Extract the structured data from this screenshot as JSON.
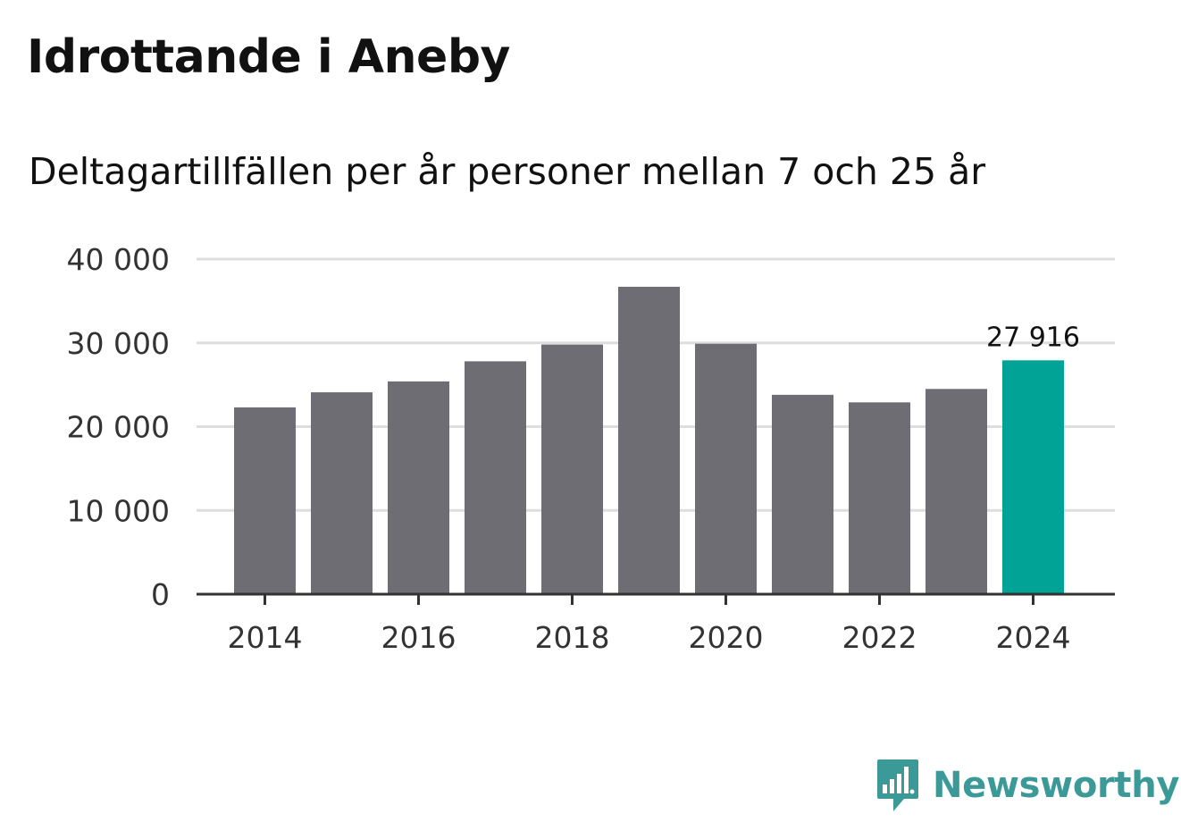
{
  "header": {
    "title": "Idrottande i Aneby",
    "subtitle": "Deltagartillfällen per år personer mellan 7 och 25 år"
  },
  "chart_data": {
    "type": "bar",
    "title": "Idrottande i Aneby",
    "subtitle": "Deltagartillfällen per år personer mellan 7 och 25 år",
    "xlabel": "",
    "ylabel": "",
    "categories": [
      "2014",
      "2015",
      "2016",
      "2017",
      "2018",
      "2019",
      "2020",
      "2021",
      "2022",
      "2023",
      "2024"
    ],
    "values": [
      22300,
      24100,
      25400,
      27800,
      29800,
      36700,
      29900,
      23800,
      22900,
      24500,
      27916
    ],
    "highlight_index": 10,
    "data_label": "27 916",
    "ylim": [
      0,
      40000
    ],
    "yticks": [
      0,
      10000,
      20000,
      30000,
      40000
    ],
    "ytick_labels": [
      "0",
      "10 000",
      "20 000",
      "30 000",
      "40 000"
    ],
    "xtick_labels": [
      "2014",
      "2016",
      "2018",
      "2020",
      "2022",
      "2024"
    ],
    "grid": true,
    "colors": {
      "bar": "#6e6d73",
      "highlight": "#00a396",
      "grid": "#dddddd",
      "axis": "#333333",
      "text": "#333333"
    }
  },
  "brand": {
    "name": "Newsworthy",
    "icon": "newsworthy-logo-icon",
    "color": "#3b9a98"
  }
}
